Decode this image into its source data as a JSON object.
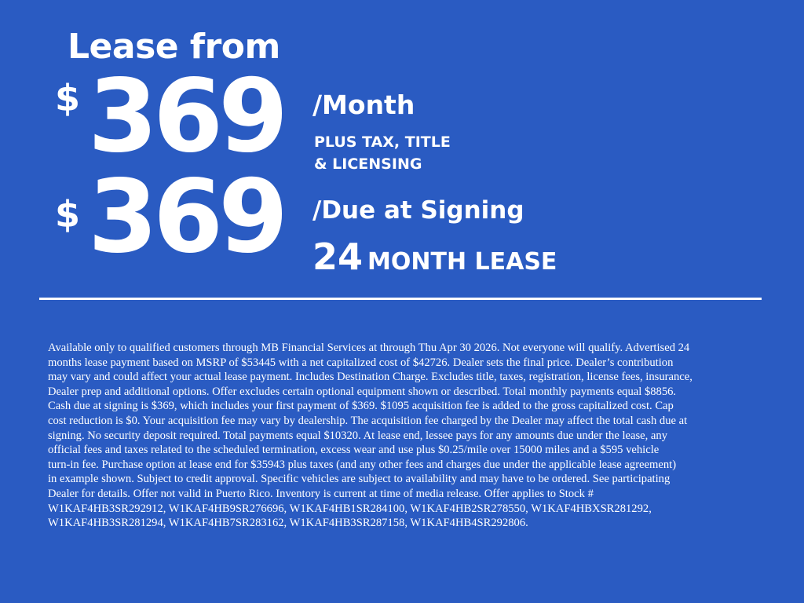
{
  "colors": {
    "background": "#2a5bc2",
    "text": "#ffffff"
  },
  "headline": "Lease from",
  "monthly": {
    "currency": "$",
    "amount": "369",
    "label": "/Month",
    "note_line1": "PLUS TAX, TITLE",
    "note_line2": "& LICENSING"
  },
  "signing": {
    "currency": "$",
    "amount": "369",
    "label": "/Due at Signing"
  },
  "term": {
    "months": "24",
    "label": "MONTH LEASE"
  },
  "disclaimer_lines": [
    "Available only to qualified customers through MB Financial Services at  through Thu Apr 30 2026. Not everyone will qualify. Advertised 24",
    "months lease payment based on MSRP of $53445 with a net capitalized cost of $42726. Dealer sets the final price. Dealer’s contribution",
    "may vary and could affect your actual lease payment. Includes Destination Charge. Excludes title, taxes, registration, license fees, insurance,",
    "Dealer prep and additional options. Offer excludes certain optional equipment shown or described. Total monthly payments equal $8856.",
    "Cash due at signing is $369, which includes your first payment of $369. $1095 acquisition fee is added to the gross capitalized cost. Cap",
    "cost reduction is $0. Your acquisition fee may vary by dealership. The acquisition fee charged by the Dealer may affect the total cash due at",
    "signing. No security deposit required. Total payments equal $10320. At lease end, lessee pays for any amounts due under the lease, any",
    "official fees and taxes related to the scheduled termination, excess wear and use plus $0.25/mile over 15000 miles and a $595 vehicle",
    "turn-in fee. Purchase option at lease end for $35943 plus taxes (and any other fees and charges due under the applicable lease agreement)",
    "in example shown. Subject to credit approval. Specific vehicles are subject to availability and may have to be ordered. See participating",
    "Dealer for details. Offer not valid in Puerto Rico. Inventory is current at time of media release. Offer applies to Stock #",
    "W1KAF4HB3SR292912, W1KAF4HB9SR276696, W1KAF4HB1SR284100, W1KAF4HB2SR278550, W1KAF4HBXSR281292,",
    "W1KAF4HB3SR281294, W1KAF4HB7SR283162, W1KAF4HB3SR287158, W1KAF4HB4SR292806."
  ]
}
